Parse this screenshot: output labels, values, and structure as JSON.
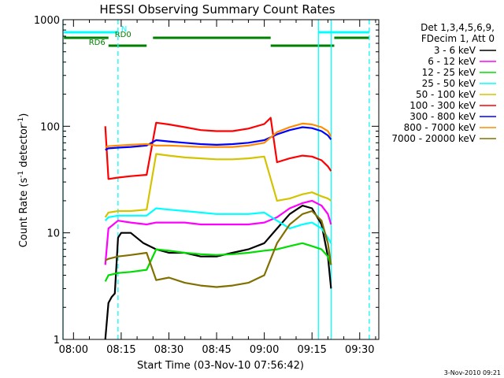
{
  "chart_data": {
    "type": "line",
    "title": "HESSI Observing Summary Count Rates",
    "ylabel": "Count Rate (s",
    "ylabel_sup1": "-1",
    "ylabel_mid": " detector",
    "ylabel_sup2": "-1",
    "ylabel_end": ")",
    "xlabel": "Start Time (03-Nov-10 07:56:42)",
    "footer_date": "3-Nov-2010 09:21",
    "y_scale": "log",
    "ylim": [
      1,
      1000
    ],
    "xlim": [
      "07:56:42",
      "09:36:00"
    ],
    "x_ticks": [
      "08:00",
      "08:15",
      "08:30",
      "08:45",
      "09:00",
      "09:15",
      "09:30"
    ],
    "y_ticks": [
      "1",
      "10",
      "100",
      "1000"
    ],
    "legend": {
      "header1": "Det 1,3,4,5,6,9,",
      "header2": "FDecim 1, Att 0",
      "entries": [
        {
          "label": "3 - 6 keV",
          "color": "#000000"
        },
        {
          "label": "6 - 12 keV",
          "color": "#ff00ff"
        },
        {
          "label": "12 - 25 keV",
          "color": "#00dd00"
        },
        {
          "label": "25 - 50 keV",
          "color": "#00ffff"
        },
        {
          "label": "50 - 100 keV",
          "color": "#d4c400"
        },
        {
          "label": "100 - 300 keV",
          "color": "#ff0000"
        },
        {
          "label": "300 - 800 keV",
          "color": "#0000ff"
        },
        {
          "label": "800 - 7000 keV",
          "color": "#ff8c00"
        },
        {
          "label": "7000 - 20000 keV",
          "color": "#807000"
        }
      ]
    },
    "flags": [
      {
        "label": "N",
        "color": "#00ffff",
        "segments": [
          [
            "07:57",
            "08:14"
          ],
          [
            "09:17",
            "09:33"
          ]
        ]
      },
      {
        "label": "RD0",
        "color": "#008000",
        "segments": [
          [
            "07:57",
            "08:11"
          ],
          [
            "08:25",
            "09:02"
          ],
          [
            "09:22",
            "09:33"
          ]
        ]
      },
      {
        "label": "RD6",
        "color": "#008000",
        "segments": [
          [
            "08:11",
            "08:23"
          ],
          [
            "09:02",
            "09:22"
          ]
        ]
      }
    ],
    "vertical_lines": [
      {
        "x": "07:56:42",
        "color": "#00ffff",
        "style": "solid"
      },
      {
        "x": "08:14:00",
        "color": "#00ffff",
        "style": "dashed"
      },
      {
        "x": "09:17:00",
        "color": "#00ffff",
        "style": "solid"
      },
      {
        "x": "09:21:00",
        "color": "#00ffff",
        "style": "solid"
      },
      {
        "x": "09:33:00",
        "color": "#00ffff",
        "style": "dashed"
      }
    ],
    "series": [
      {
        "name": "3 - 6 keV",
        "color": "#000000",
        "x": [
          "08:10",
          "08:11",
          "08:12",
          "08:13",
          "08:14",
          "08:15",
          "08:18",
          "08:22",
          "08:26",
          "08:30",
          "08:35",
          "08:40",
          "08:45",
          "08:50",
          "08:55",
          "09:00",
          "09:04",
          "09:08",
          "09:12",
          "09:15",
          "09:18",
          "09:20",
          "09:21"
        ],
        "y": [
          1.0,
          2.2,
          2.5,
          2.7,
          9,
          10,
          10,
          8,
          7,
          6.5,
          6.5,
          6,
          6,
          6.5,
          7,
          8,
          11,
          15,
          18,
          17,
          12,
          6,
          3
        ]
      },
      {
        "name": "6 - 12 keV",
        "color": "#ff00ff",
        "x": [
          "08:10",
          "08:11",
          "08:14",
          "08:18",
          "08:23",
          "08:26",
          "08:30",
          "08:35",
          "08:40",
          "08:45",
          "08:50",
          "08:55",
          "09:00",
          "09:04",
          "09:08",
          "09:12",
          "09:15",
          "09:18",
          "09:20",
          "09:21"
        ],
        "y": [
          5,
          11,
          13,
          12.5,
          12,
          12.5,
          12.5,
          12.5,
          12,
          12,
          12,
          12,
          12.5,
          14,
          17,
          19,
          20,
          18,
          15,
          12
        ]
      },
      {
        "name": "12 - 25 keV",
        "color": "#00dd00",
        "x": [
          "08:10",
          "08:11",
          "08:14",
          "08:18",
          "08:23",
          "08:26",
          "08:30",
          "08:35",
          "08:40",
          "08:45",
          "08:50",
          "08:55",
          "09:00",
          "09:04",
          "09:08",
          "09:12",
          "09:15",
          "09:18",
          "09:20",
          "09:21"
        ],
        "y": [
          3.5,
          4,
          4.2,
          4.3,
          4.5,
          7,
          6.8,
          6.5,
          6.3,
          6.2,
          6.3,
          6.5,
          6.8,
          7,
          7.5,
          8,
          7.5,
          7,
          6,
          5
        ]
      },
      {
        "name": "25 - 50 keV",
        "color": "#00ffff",
        "x": [
          "08:10",
          "08:11",
          "08:14",
          "08:18",
          "08:23",
          "08:26",
          "08:30",
          "08:35",
          "08:40",
          "08:45",
          "08:50",
          "08:55",
          "09:00",
          "09:04",
          "09:08",
          "09:12",
          "09:15",
          "09:18",
          "09:20",
          "09:21"
        ],
        "y": [
          13,
          14,
          14.5,
          14.5,
          14.5,
          17,
          16.5,
          16,
          15.5,
          15,
          15,
          15,
          15.5,
          13,
          11,
          12,
          12.5,
          11,
          9,
          8
        ]
      },
      {
        "name": "50 - 100 keV",
        "color": "#d4c400",
        "x": [
          "08:10",
          "08:11",
          "08:14",
          "08:18",
          "08:23",
          "08:26",
          "08:30",
          "08:35",
          "08:40",
          "08:45",
          "08:50",
          "08:55",
          "09:00",
          "09:04",
          "09:08",
          "09:12",
          "09:15",
          "09:18",
          "09:20",
          "09:21"
        ],
        "y": [
          14,
          15.5,
          16,
          16,
          16.5,
          55,
          53,
          51,
          50,
          49,
          49,
          50,
          52,
          20,
          21,
          23,
          24,
          22,
          21,
          20
        ]
      },
      {
        "name": "100 - 300 keV",
        "color": "#ff0000",
        "x": [
          "08:10",
          "08:11",
          "08:14",
          "08:18",
          "08:23",
          "08:26",
          "08:30",
          "08:35",
          "08:40",
          "08:45",
          "08:50",
          "08:55",
          "09:00",
          "09:02",
          "09:04",
          "09:08",
          "09:12",
          "09:15",
          "09:18",
          "09:20",
          "09:21"
        ],
        "y": [
          100,
          32,
          33,
          34,
          35,
          108,
          104,
          98,
          92,
          90,
          90,
          95,
          105,
          120,
          46,
          50,
          53,
          52,
          48,
          42,
          38
        ]
      },
      {
        "name": "300 - 800 keV",
        "color": "#0000ff",
        "x": [
          "08:10",
          "08:11",
          "08:14",
          "08:18",
          "08:23",
          "08:26",
          "08:30",
          "08:35",
          "08:40",
          "08:45",
          "08:50",
          "08:55",
          "09:00",
          "09:04",
          "09:08",
          "09:12",
          "09:15",
          "09:18",
          "09:20",
          "09:21"
        ],
        "y": [
          60,
          62,
          63,
          64,
          66,
          74,
          72,
          70,
          68,
          67,
          68,
          70,
          74,
          84,
          92,
          98,
          96,
          90,
          82,
          75
        ]
      },
      {
        "name": "800 - 7000 keV",
        "color": "#ff8c00",
        "x": [
          "08:10",
          "08:11",
          "08:14",
          "08:18",
          "08:23",
          "08:26",
          "08:30",
          "08:35",
          "08:40",
          "08:45",
          "08:50",
          "08:55",
          "09:00",
          "09:04",
          "09:08",
          "09:12",
          "09:15",
          "09:18",
          "09:20",
          "09:21"
        ],
        "y": [
          64,
          65,
          66,
          67,
          68,
          66,
          66,
          65,
          64,
          64,
          64,
          66,
          70,
          88,
          98,
          106,
          104,
          98,
          90,
          80
        ]
      },
      {
        "name": "7000 - 20000 keV",
        "color": "#807000",
        "x": [
          "08:10",
          "08:11",
          "08:14",
          "08:18",
          "08:23",
          "08:26",
          "08:30",
          "08:35",
          "08:40",
          "08:45",
          "08:50",
          "08:55",
          "09:00",
          "09:04",
          "09:08",
          "09:12",
          "09:15",
          "09:18",
          "09:20",
          "09:21"
        ],
        "y": [
          5.5,
          5.7,
          6,
          6.2,
          6.5,
          3.6,
          3.8,
          3.4,
          3.2,
          3.1,
          3.2,
          3.4,
          4,
          8,
          12,
          15,
          16,
          13,
          8,
          5
        ]
      }
    ]
  }
}
